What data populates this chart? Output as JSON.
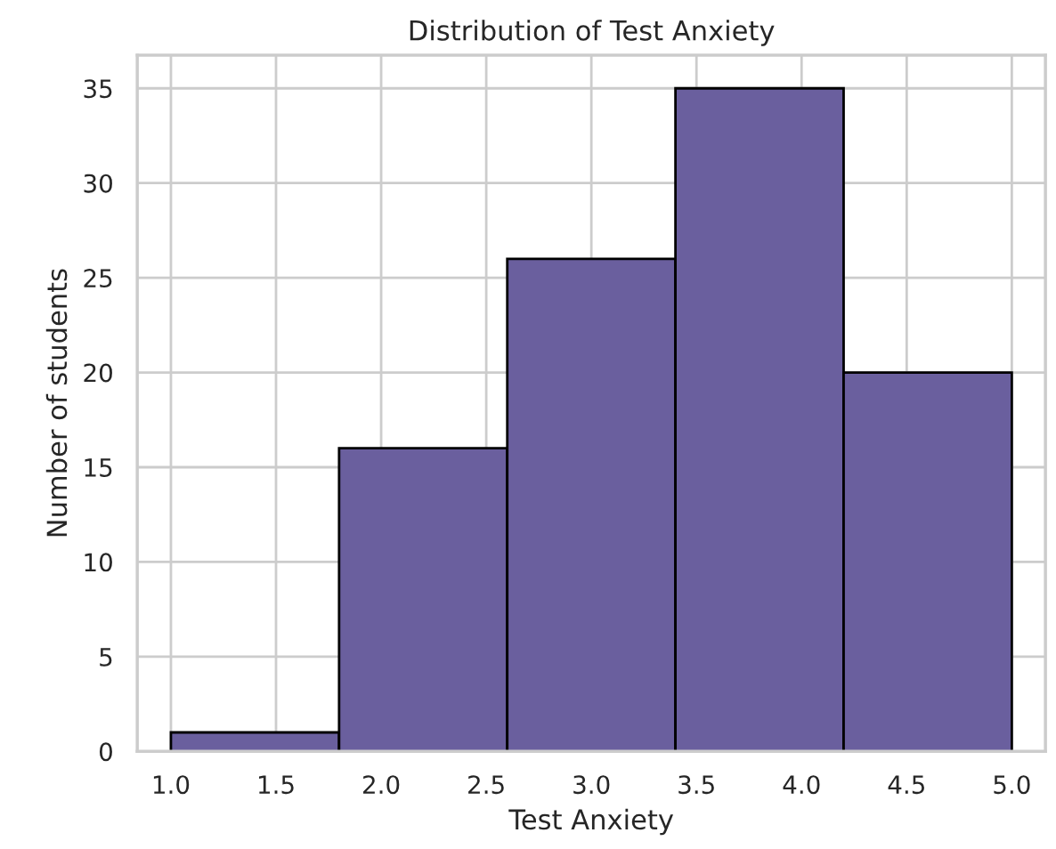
{
  "chart_data": {
    "type": "histogram",
    "title": "Distribution of Test Anxiety",
    "xlabel": "Test Anxiety",
    "ylabel": "Number of students",
    "bins": [
      1.0,
      1.8,
      2.6,
      3.4,
      4.2,
      5.0
    ],
    "values": [
      1,
      16,
      26,
      35,
      20
    ],
    "color": "#6a5f9e",
    "xlim": [
      0.84,
      5.16
    ],
    "ylim": [
      0,
      36.75
    ],
    "xticks": [
      {
        "value": 1.0,
        "label": "1.0"
      },
      {
        "value": 1.5,
        "label": "1.5"
      },
      {
        "value": 2.0,
        "label": "2.0"
      },
      {
        "value": 2.5,
        "label": "2.5"
      },
      {
        "value": 3.0,
        "label": "3.0"
      },
      {
        "value": 3.5,
        "label": "3.5"
      },
      {
        "value": 4.0,
        "label": "4.0"
      },
      {
        "value": 4.5,
        "label": "4.5"
      },
      {
        "value": 5.0,
        "label": "5.0"
      }
    ],
    "yticks": [
      0,
      5,
      10,
      15,
      20,
      25,
      30,
      35
    ],
    "grid": true
  }
}
